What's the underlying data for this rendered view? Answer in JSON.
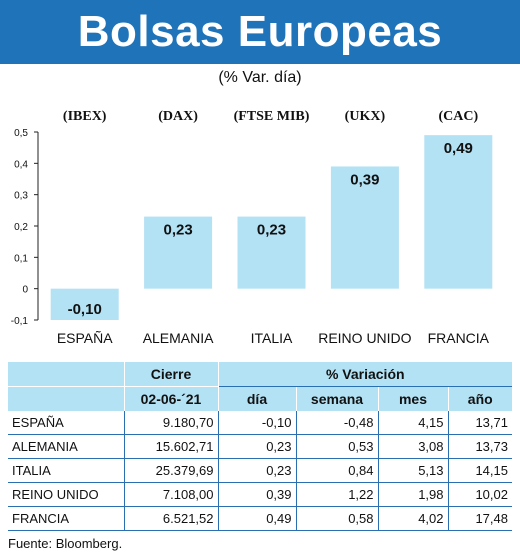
{
  "title": "Bolsas Europeas",
  "subtitle": "(% Var. día)",
  "chart_data": {
    "type": "bar",
    "categories": [
      "ESPAÑA",
      "ALEMANIA",
      "ITALIA",
      "REINO UNIDO",
      "FRANCIA"
    ],
    "index_labels": [
      "(IBEX)",
      "(DAX)",
      "(FTSE MIB)",
      "(UKX)",
      "(CAC)"
    ],
    "values": [
      -0.1,
      0.23,
      0.23,
      0.39,
      0.49
    ],
    "value_labels": [
      "-0,10",
      "0,23",
      "0,23",
      "0,39",
      "0,49"
    ],
    "ylim": [
      -0.1,
      0.5
    ],
    "y_ticks": [
      0.5,
      0.4,
      0.3,
      0.2,
      0.1,
      0,
      -0.1
    ],
    "y_tick_labels": [
      "0,5",
      "0,4",
      "0,3",
      "0,2",
      "0,1",
      "0",
      "-0,1"
    ],
    "bar_color": "#b3e2f5",
    "grid": false
  },
  "table": {
    "group_headers": {
      "cierre": "Cierre",
      "variacion": "% Variación"
    },
    "columns": {
      "date": "02-06-´21",
      "dia": "día",
      "semana": "semana",
      "mes": "mes",
      "ano": "año"
    },
    "rows": [
      {
        "name": "ESPAÑA",
        "cierre": "9.180,70",
        "dia": "-0,10",
        "semana": "-0,48",
        "mes": "4,15",
        "ano": "13,71"
      },
      {
        "name": "ALEMANIA",
        "cierre": "15.602,71",
        "dia": "0,23",
        "semana": "0,53",
        "mes": "3,08",
        "ano": "13,73"
      },
      {
        "name": "ITALIA",
        "cierre": "25.379,69",
        "dia": "0,23",
        "semana": "0,84",
        "mes": "5,13",
        "ano": "14,15"
      },
      {
        "name": "REINO UNIDO",
        "cierre": "7.108,00",
        "dia": "0,39",
        "semana": "1,22",
        "mes": "1,98",
        "ano": "10,02"
      },
      {
        "name": "FRANCIA",
        "cierre": "6.521,52",
        "dia": "0,49",
        "semana": "0,58",
        "mes": "4,02",
        "ano": "17,48"
      }
    ]
  },
  "source": "Fuente: Bloomberg.",
  "colors": {
    "banner": "#1f73b8",
    "header_fill": "#b3e2f5",
    "rule": "#2a6fb0"
  }
}
